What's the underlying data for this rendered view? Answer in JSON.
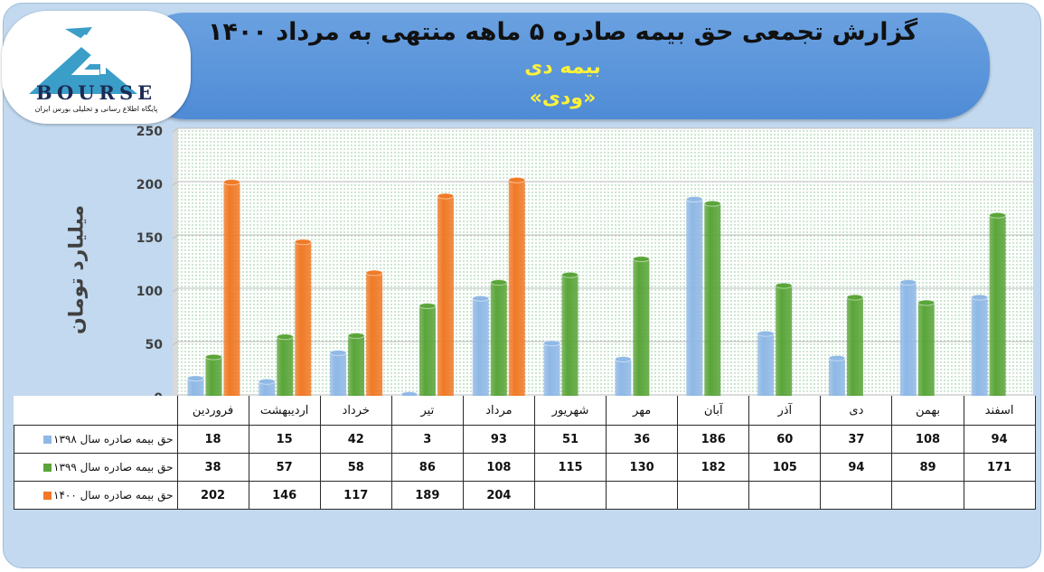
{
  "header": {
    "title": "گزارش تجمعی حق بیمه صادره ۵ ماهه منتهی به مرداد ۱۴۰۰",
    "subtitle": "بیمه دی",
    "subtitle2": "«ودی»"
  },
  "logo": {
    "text": "BOURSE",
    "tagline": "پایگاه اطلاع رسانی و تحلیلی بورس ایران"
  },
  "colors": {
    "series_1398": "#8fb8e6",
    "series_1399": "#5aa539",
    "series_1400": "#f07a26"
  },
  "chart_data": {
    "type": "bar",
    "ylabel": "میلیارد تومان",
    "ylim": [
      0,
      250
    ],
    "yticks": [
      "0",
      "50",
      "100",
      "150",
      "200",
      "250"
    ],
    "categories": [
      "فروردین",
      "اردیبهشت",
      "خرداد",
      "تیر",
      "مرداد",
      "شهریور",
      "مهر",
      "آبان",
      "آذر",
      "دی",
      "بهمن",
      "اسفند"
    ],
    "series": [
      {
        "name": "حق بیمه صادره سال ۱۳۹۸",
        "values": [
          18,
          15,
          42,
          3,
          93,
          51,
          36,
          186,
          60,
          37,
          108,
          94
        ]
      },
      {
        "name": "حق بیمه صادره سال ۱۳۹۹",
        "values": [
          38,
          57,
          58,
          86,
          108,
          115,
          130,
          182,
          105,
          94,
          89,
          171
        ]
      },
      {
        "name": "حق بیمه صادره سال ۱۴۰۰",
        "values": [
          202,
          146,
          117,
          189,
          204,
          null,
          null,
          null,
          null,
          null,
          null,
          null
        ]
      }
    ],
    "grid": true,
    "legend": "table"
  }
}
